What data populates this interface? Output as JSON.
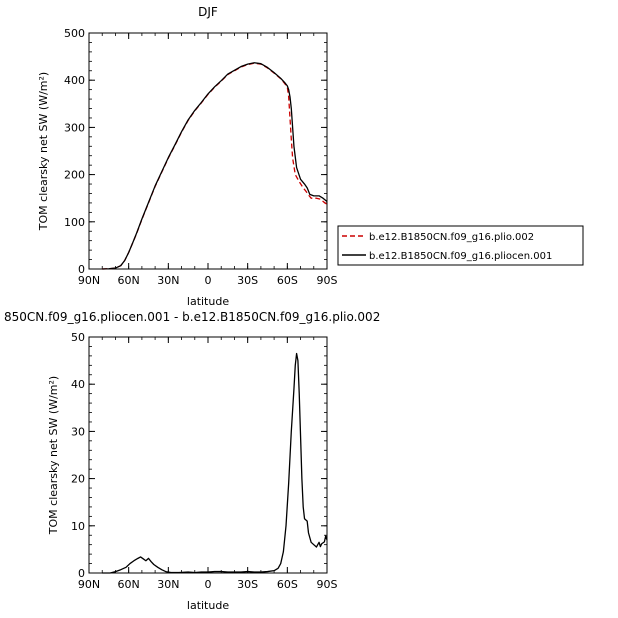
{
  "chart_data": [
    {
      "type": "line",
      "title": "DJF",
      "xlabel": "latitude",
      "ylabel": "TOM clearsky net SW (W/m²)",
      "xlim": [
        90,
        -90
      ],
      "ylim": [
        0,
        500
      ],
      "xticks": [
        90,
        60,
        30,
        0,
        -30,
        -60,
        -90
      ],
      "xtick_labels": [
        "90N",
        "60N",
        "30N",
        "0",
        "30S",
        "60S",
        "90S"
      ],
      "yticks": [
        0,
        100,
        200,
        300,
        400,
        500
      ],
      "ytick_labels": [
        "0",
        "100",
        "200",
        "300",
        "400",
        "500"
      ],
      "legend": {
        "placement": "right"
      },
      "series": [
        {
          "name": "b.e12.B1850CN.f09_g16.plio.002",
          "color": "#cc0000",
          "style": "dashed",
          "points": [
            [
              80,
              0
            ],
            [
              75,
              0.5
            ],
            [
              70,
              2
            ],
            [
              66,
              7
            ],
            [
              63,
              18
            ],
            [
              60,
              35
            ],
            [
              57,
              55
            ],
            [
              54,
              75
            ],
            [
              50,
              105
            ],
            [
              45,
              140
            ],
            [
              40,
              175
            ],
            [
              35,
              205
            ],
            [
              30,
              235
            ],
            [
              25,
              262
            ],
            [
              20,
              290
            ],
            [
              15,
              315
            ],
            [
              10,
              335
            ],
            [
              5,
              352
            ],
            [
              0,
              370
            ],
            [
              -5,
              385
            ],
            [
              -10,
              398
            ],
            [
              -15,
              412
            ],
            [
              -20,
              420
            ],
            [
              -25,
              428
            ],
            [
              -30,
              433
            ],
            [
              -35,
              436
            ],
            [
              -40,
              434
            ],
            [
              -45,
              426
            ],
            [
              -50,
              415
            ],
            [
              -55,
              403
            ],
            [
              -58,
              393
            ],
            [
              -60,
              385
            ],
            [
              -61,
              365
            ],
            [
              -62,
              320
            ],
            [
              -63,
              275
            ],
            [
              -64,
              235
            ],
            [
              -66,
              200
            ],
            [
              -69,
              185
            ],
            [
              -72,
              172
            ],
            [
              -74,
              165
            ],
            [
              -76,
              157
            ],
            [
              -78,
              150
            ],
            [
              -82,
              150
            ],
            [
              -85,
              148
            ],
            [
              -88,
              141
            ],
            [
              -90,
              137
            ]
          ]
        },
        {
          "name": "b.e12.B1850CN.f09_g16.pliocen.001",
          "color": "#000000",
          "style": "solid",
          "points": [
            [
              80,
              0
            ],
            [
              75,
              0.5
            ],
            [
              70,
              2
            ],
            [
              66,
              7
            ],
            [
              63,
              18
            ],
            [
              60,
              35
            ],
            [
              57,
              55
            ],
            [
              54,
              76
            ],
            [
              50,
              106
            ],
            [
              45,
              141
            ],
            [
              40,
              176
            ],
            [
              35,
              206
            ],
            [
              30,
              236
            ],
            [
              25,
              263
            ],
            [
              20,
              291
            ],
            [
              15,
              316
            ],
            [
              10,
              336
            ],
            [
              5,
              353
            ],
            [
              0,
              371
            ],
            [
              -5,
              386
            ],
            [
              -10,
              399
            ],
            [
              -15,
              413
            ],
            [
              -20,
              421
            ],
            [
              -25,
              429
            ],
            [
              -30,
              434
            ],
            [
              -35,
              437
            ],
            [
              -40,
              435
            ],
            [
              -45,
              427
            ],
            [
              -50,
              416
            ],
            [
              -55,
              404
            ],
            [
              -58,
              395
            ],
            [
              -60,
              388
            ],
            [
              -61,
              380
            ],
            [
              -62,
              365
            ],
            [
              -63,
              340
            ],
            [
              -64,
              300
            ],
            [
              -65,
              260
            ],
            [
              -67,
              215
            ],
            [
              -70,
              190
            ],
            [
              -73,
              180
            ],
            [
              -75,
              172
            ],
            [
              -77,
              158
            ],
            [
              -80,
              155
            ],
            [
              -84,
              155
            ],
            [
              -87,
              150
            ],
            [
              -90,
              143
            ]
          ]
        }
      ]
    },
    {
      "type": "line",
      "title": "850CN.f09_g16.pliocen.001 - b.e12.B1850CN.f09_g16.plio.002",
      "xlabel": "latitude",
      "ylabel": "TOM clearsky net SW (W/m²)",
      "xlim": [
        90,
        -90
      ],
      "ylim": [
        0,
        50
      ],
      "xticks": [
        90,
        60,
        30,
        0,
        -30,
        -60,
        -90
      ],
      "xtick_labels": [
        "90N",
        "60N",
        "30N",
        "0",
        "30S",
        "60S",
        "90S"
      ],
      "yticks": [
        0,
        10,
        20,
        30,
        40,
        50
      ],
      "ytick_labels": [
        "0",
        "10",
        "20",
        "30",
        "40",
        "50"
      ],
      "series": [
        {
          "color": "#000000",
          "style": "solid",
          "points": [
            [
              80,
              0
            ],
            [
              74,
              0
            ],
            [
              70,
              0.3
            ],
            [
              66,
              0.7
            ],
            [
              62,
              1.2
            ],
            [
              59,
              2
            ],
            [
              56,
              2.6
            ],
            [
              53,
              3.1
            ],
            [
              51,
              3.4
            ],
            [
              49,
              3
            ],
            [
              47,
              2.6
            ],
            [
              45,
              3.1
            ],
            [
              43,
              2.4
            ],
            [
              41,
              1.8
            ],
            [
              38,
              1.2
            ],
            [
              35,
              0.7
            ],
            [
              32,
              0.3
            ],
            [
              28,
              0.1
            ],
            [
              22,
              0.1
            ],
            [
              15,
              0.2
            ],
            [
              10,
              0.1
            ],
            [
              5,
              0.2
            ],
            [
              0,
              0.2
            ],
            [
              -5,
              0.3
            ],
            [
              -10,
              0.3
            ],
            [
              -15,
              0.2
            ],
            [
              -20,
              0.2
            ],
            [
              -25,
              0.2
            ],
            [
              -30,
              0.3
            ],
            [
              -35,
              0.2
            ],
            [
              -40,
              0.2
            ],
            [
              -45,
              0.3
            ],
            [
              -50,
              0.5
            ],
            [
              -53,
              1
            ],
            [
              -55,
              2
            ],
            [
              -57,
              4.5
            ],
            [
              -59,
              10
            ],
            [
              -61,
              19
            ],
            [
              -63,
              30
            ],
            [
              -65,
              39
            ],
            [
              -66,
              44
            ],
            [
              -67,
              46.5
            ],
            [
              -68,
              45
            ],
            [
              -69,
              38
            ],
            [
              -70,
              29
            ],
            [
              -71,
              20
            ],
            [
              -72,
              14
            ],
            [
              -73,
              11.5
            ],
            [
              -75,
              11
            ],
            [
              -76,
              8.5
            ],
            [
              -78,
              6.5
            ],
            [
              -80,
              6
            ],
            [
              -82,
              5.5
            ],
            [
              -84,
              6.5
            ],
            [
              -85,
              5.6
            ],
            [
              -86,
              6.2
            ],
            [
              -88,
              6.6
            ],
            [
              -89,
              7.8
            ],
            [
              -90,
              7
            ]
          ]
        }
      ]
    }
  ]
}
